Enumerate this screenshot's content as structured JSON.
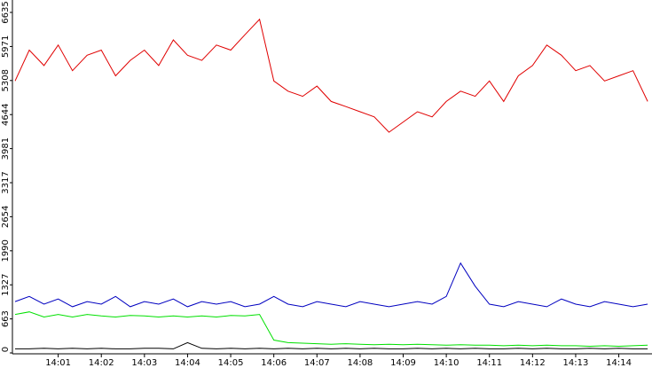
{
  "chart_data": {
    "type": "line",
    "x": [
      0,
      0.33,
      0.67,
      1,
      1.33,
      1.67,
      2,
      2.33,
      2.67,
      3,
      3.33,
      3.67,
      4,
      4.33,
      4.67,
      5,
      5.33,
      5.67,
      6,
      6.33,
      6.67,
      7,
      7.33,
      7.67,
      8,
      8.33,
      8.67,
      9,
      9.33,
      9.67,
      10,
      10.33,
      10.67,
      11,
      11.33,
      11.67,
      12,
      12.33,
      12.67,
      13,
      13.33,
      13.67,
      14,
      14.33,
      14.67
    ],
    "xlim": [
      0,
      14.77
    ],
    "xticks": [
      {
        "value": 1,
        "label": "14:01"
      },
      {
        "value": 2,
        "label": "14:02"
      },
      {
        "value": 3,
        "label": "14:03"
      },
      {
        "value": 4,
        "label": "14:04"
      },
      {
        "value": 5,
        "label": "14:05"
      },
      {
        "value": 6,
        "label": "14:06"
      },
      {
        "value": 7,
        "label": "14:07"
      },
      {
        "value": 8,
        "label": "14:08"
      },
      {
        "value": 9,
        "label": "14:09"
      },
      {
        "value": 10,
        "label": "14:10"
      },
      {
        "value": 11,
        "label": "14:11"
      },
      {
        "value": 12,
        "label": "14:12"
      },
      {
        "value": 13,
        "label": "14:13"
      },
      {
        "value": 14,
        "label": "14:14"
      }
    ],
    "ylim": [
      0,
      6635
    ],
    "yticks": [
      0,
      663,
      1327,
      1990,
      2654,
      3317,
      3981,
      4644,
      5308,
      5971,
      6635
    ],
    "series": [
      {
        "color": "#e00000",
        "values": [
          5300,
          5900,
          5600,
          6000,
          5500,
          5800,
          5900,
          5400,
          5700,
          5900,
          5600,
          6100,
          5800,
          5700,
          6000,
          5900,
          6200,
          6500,
          5300,
          5100,
          5000,
          5200,
          4900,
          4800,
          4700,
          4600,
          4300,
          4500,
          4700,
          4600,
          4900,
          5100,
          5000,
          5300,
          4900,
          5400,
          5600,
          6000,
          5800,
          5500,
          5600,
          5300,
          5400,
          5500,
          4900
        ]
      },
      {
        "color": "#0000c0",
        "values": [
          1000,
          1100,
          950,
          1050,
          900,
          1000,
          950,
          1100,
          900,
          1000,
          950,
          1050,
          900,
          1000,
          950,
          1000,
          900,
          950,
          1100,
          950,
          900,
          1000,
          950,
          900,
          1000,
          950,
          900,
          950,
          1000,
          950,
          1100,
          1750,
          1300,
          950,
          900,
          1000,
          950,
          900,
          1050,
          950,
          900,
          1000,
          950,
          900,
          950
        ]
      },
      {
        "color": "#00e000",
        "values": [
          750,
          800,
          700,
          750,
          700,
          750,
          720,
          700,
          730,
          720,
          700,
          720,
          700,
          720,
          700,
          730,
          720,
          750,
          250,
          200,
          190,
          180,
          170,
          180,
          170,
          160,
          170,
          160,
          170,
          160,
          150,
          160,
          150,
          150,
          140,
          150,
          140,
          150,
          140,
          140,
          130,
          140,
          130,
          140,
          150
        ]
      },
      {
        "color": "#000000",
        "values": [
          80,
          80,
          90,
          80,
          90,
          80,
          90,
          80,
          80,
          90,
          90,
          80,
          200,
          90,
          80,
          90,
          80,
          90,
          80,
          90,
          80,
          90,
          80,
          90,
          80,
          90,
          80,
          80,
          90,
          80,
          90,
          80,
          90,
          80,
          80,
          90,
          80,
          90,
          80,
          80,
          90,
          80,
          90,
          80,
          80
        ]
      }
    ]
  }
}
